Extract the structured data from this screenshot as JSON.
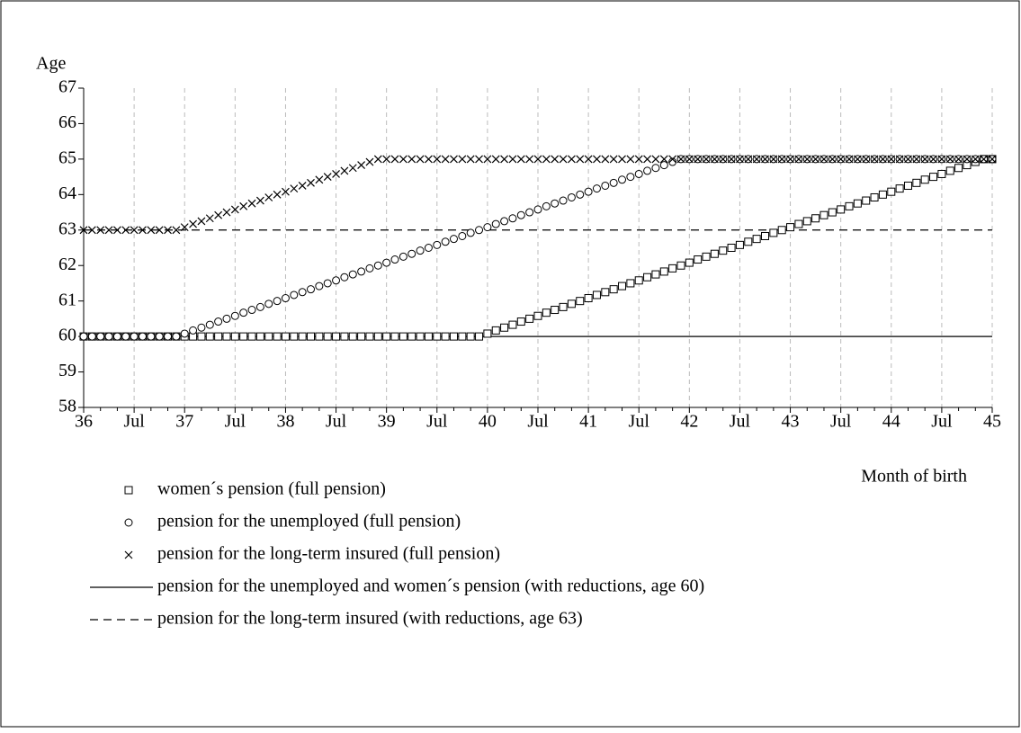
{
  "chart_data": {
    "type": "line",
    "y_label": "Age",
    "x_label": "Month of birth",
    "ylim": [
      58,
      67
    ],
    "yticks": [
      58,
      59,
      60,
      61,
      62,
      63,
      64,
      65,
      66,
      67
    ],
    "grid": "x-dashed",
    "categories": [
      "36",
      null,
      null,
      null,
      null,
      null,
      "Jul",
      null,
      null,
      null,
      null,
      null,
      "37",
      null,
      null,
      null,
      null,
      null,
      "Jul",
      null,
      null,
      null,
      null,
      null,
      "38",
      null,
      null,
      null,
      null,
      null,
      "Jul",
      null,
      null,
      null,
      null,
      null,
      "39",
      null,
      null,
      null,
      null,
      null,
      "Jul",
      null,
      null,
      null,
      null,
      null,
      "40",
      null,
      null,
      null,
      null,
      null,
      "Jul",
      null,
      null,
      null,
      null,
      null,
      "41",
      null,
      null,
      null,
      null,
      null,
      "Jul",
      null,
      null,
      null,
      null,
      null,
      "42",
      null,
      null,
      null,
      null,
      null,
      "Jul",
      null,
      null,
      null,
      null,
      null,
      "43",
      null,
      null,
      null,
      null,
      null,
      "Jul",
      null,
      null,
      null,
      null,
      null,
      "44",
      null,
      null,
      null,
      null,
      null,
      "Jul",
      null,
      null,
      null,
      null,
      null,
      "45"
    ],
    "series": [
      {
        "name": "women´s pension (full pension)",
        "marker": "square",
        "color": "#000000",
        "values": [
          60,
          60,
          60,
          60,
          60,
          60,
          60,
          60,
          60,
          60,
          60,
          60,
          60,
          60,
          60,
          60,
          60,
          60,
          60,
          60,
          60,
          60,
          60,
          60,
          60,
          60,
          60,
          60,
          60,
          60,
          60,
          60,
          60,
          60,
          60,
          60,
          60,
          60,
          60,
          60,
          60,
          60,
          60,
          60,
          60,
          60,
          60,
          60,
          60.08,
          60.17,
          60.25,
          60.33,
          60.42,
          60.5,
          60.58,
          60.67,
          60.75,
          60.83,
          60.92,
          61,
          61.08,
          61.17,
          61.25,
          61.33,
          61.42,
          61.5,
          61.58,
          61.67,
          61.75,
          61.83,
          61.92,
          62,
          62.08,
          62.17,
          62.25,
          62.33,
          62.42,
          62.5,
          62.58,
          62.67,
          62.75,
          62.83,
          62.92,
          63,
          63.08,
          63.17,
          63.25,
          63.33,
          63.42,
          63.5,
          63.58,
          63.67,
          63.75,
          63.83,
          63.92,
          64,
          64.08,
          64.17,
          64.25,
          64.33,
          64.42,
          64.5,
          64.58,
          64.67,
          64.75,
          64.83,
          64.92,
          65,
          65
        ]
      },
      {
        "name": "pension for the unemployed (full pension)",
        "marker": "circle",
        "color": "#000000",
        "values": [
          60,
          60,
          60,
          60,
          60,
          60,
          60,
          60,
          60,
          60,
          60,
          60,
          60.08,
          60.17,
          60.25,
          60.33,
          60.42,
          60.5,
          60.58,
          60.67,
          60.75,
          60.83,
          60.92,
          61,
          61.08,
          61.17,
          61.25,
          61.33,
          61.42,
          61.5,
          61.58,
          61.67,
          61.75,
          61.83,
          61.92,
          62,
          62.08,
          62.17,
          62.25,
          62.33,
          62.42,
          62.5,
          62.58,
          62.67,
          62.75,
          62.83,
          62.92,
          63,
          63.08,
          63.17,
          63.25,
          63.33,
          63.42,
          63.5,
          63.58,
          63.67,
          63.75,
          63.83,
          63.92,
          64,
          64.08,
          64.17,
          64.25,
          64.33,
          64.42,
          64.5,
          64.58,
          64.67,
          64.75,
          64.83,
          64.92,
          65,
          65,
          65,
          65,
          65,
          65,
          65,
          65,
          65,
          65,
          65,
          65,
          65,
          65,
          65,
          65,
          65,
          65,
          65,
          65,
          65,
          65,
          65,
          65,
          65,
          65,
          65,
          65,
          65,
          65,
          65,
          65,
          65,
          65,
          65,
          65,
          65,
          65
        ]
      },
      {
        "name": "pension for the long-term insured (full pension)",
        "marker": "x",
        "color": "#000000",
        "values": [
          63,
          63,
          63,
          63,
          63,
          63,
          63,
          63,
          63,
          63,
          63,
          63,
          63.08,
          63.17,
          63.25,
          63.33,
          63.42,
          63.5,
          63.58,
          63.67,
          63.75,
          63.83,
          63.92,
          64,
          64.08,
          64.17,
          64.25,
          64.33,
          64.42,
          64.5,
          64.58,
          64.67,
          64.75,
          64.83,
          64.92,
          65,
          65,
          65,
          65,
          65,
          65,
          65,
          65,
          65,
          65,
          65,
          65,
          65,
          65,
          65,
          65,
          65,
          65,
          65,
          65,
          65,
          65,
          65,
          65,
          65,
          65,
          65,
          65,
          65,
          65,
          65,
          65,
          65,
          65,
          65,
          65,
          65,
          65,
          65,
          65,
          65,
          65,
          65,
          65,
          65,
          65,
          65,
          65,
          65,
          65,
          65,
          65,
          65,
          65,
          65,
          65,
          65,
          65,
          65,
          65,
          65,
          65,
          65,
          65,
          65,
          65,
          65,
          65,
          65,
          65,
          65,
          65,
          65,
          65
        ]
      }
    ],
    "reference_lines": [
      {
        "name": "pension for the unemployed and women´s pension (with reductions, age 60)",
        "value": 60,
        "style": "solid",
        "color": "#000000"
      },
      {
        "name": "pension for the long-term insured (with reductions, age 63)",
        "value": 63,
        "style": "dashed",
        "color": "#000000"
      }
    ]
  }
}
